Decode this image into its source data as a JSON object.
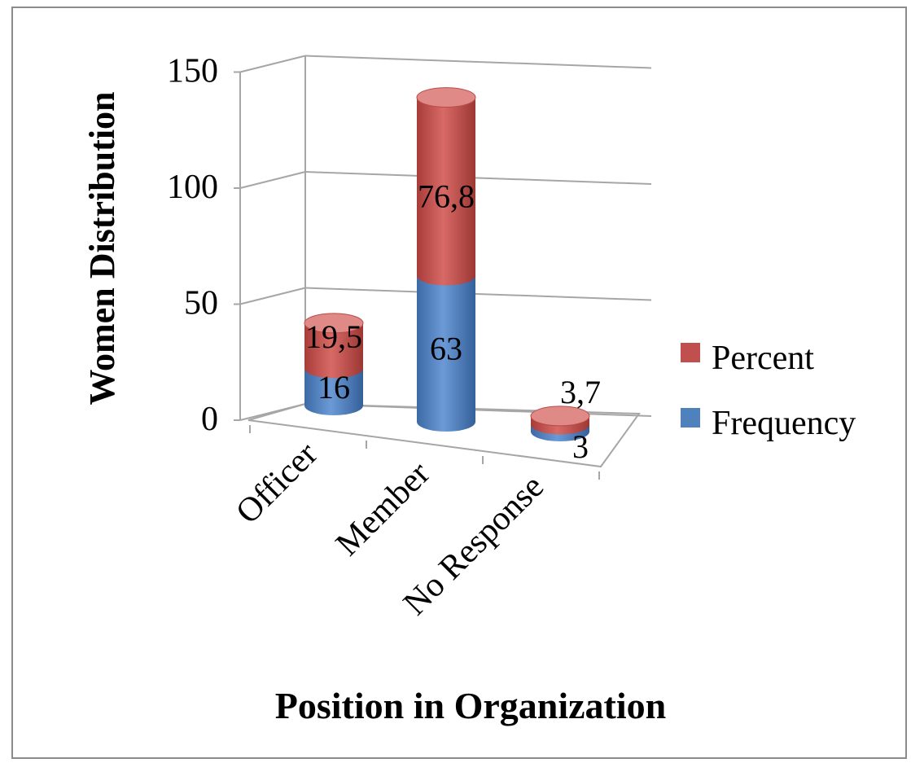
{
  "chart_data": {
    "type": "bar",
    "style": "3d-stacked-cylinder",
    "categories": [
      "Officer",
      "Member",
      "No Response"
    ],
    "series": [
      {
        "name": "Frequency",
        "values": [
          16,
          63,
          3
        ],
        "labels": [
          "16",
          "63",
          "3"
        ],
        "color": "#4f81bd"
      },
      {
        "name": "Percent",
        "values": [
          19.5,
          76.8,
          3.7
        ],
        "labels": [
          "19,5",
          "76,8",
          "3,7"
        ],
        "color": "#c0504d"
      }
    ],
    "title": "",
    "xlabel": "Position in Organization",
    "ylabel": "Women Distribution",
    "ylim": [
      0,
      150
    ],
    "yticks": [
      0,
      50,
      100,
      150
    ],
    "grid": true,
    "legend_position": "right",
    "legend_order": [
      "Percent",
      "Frequency"
    ]
  }
}
